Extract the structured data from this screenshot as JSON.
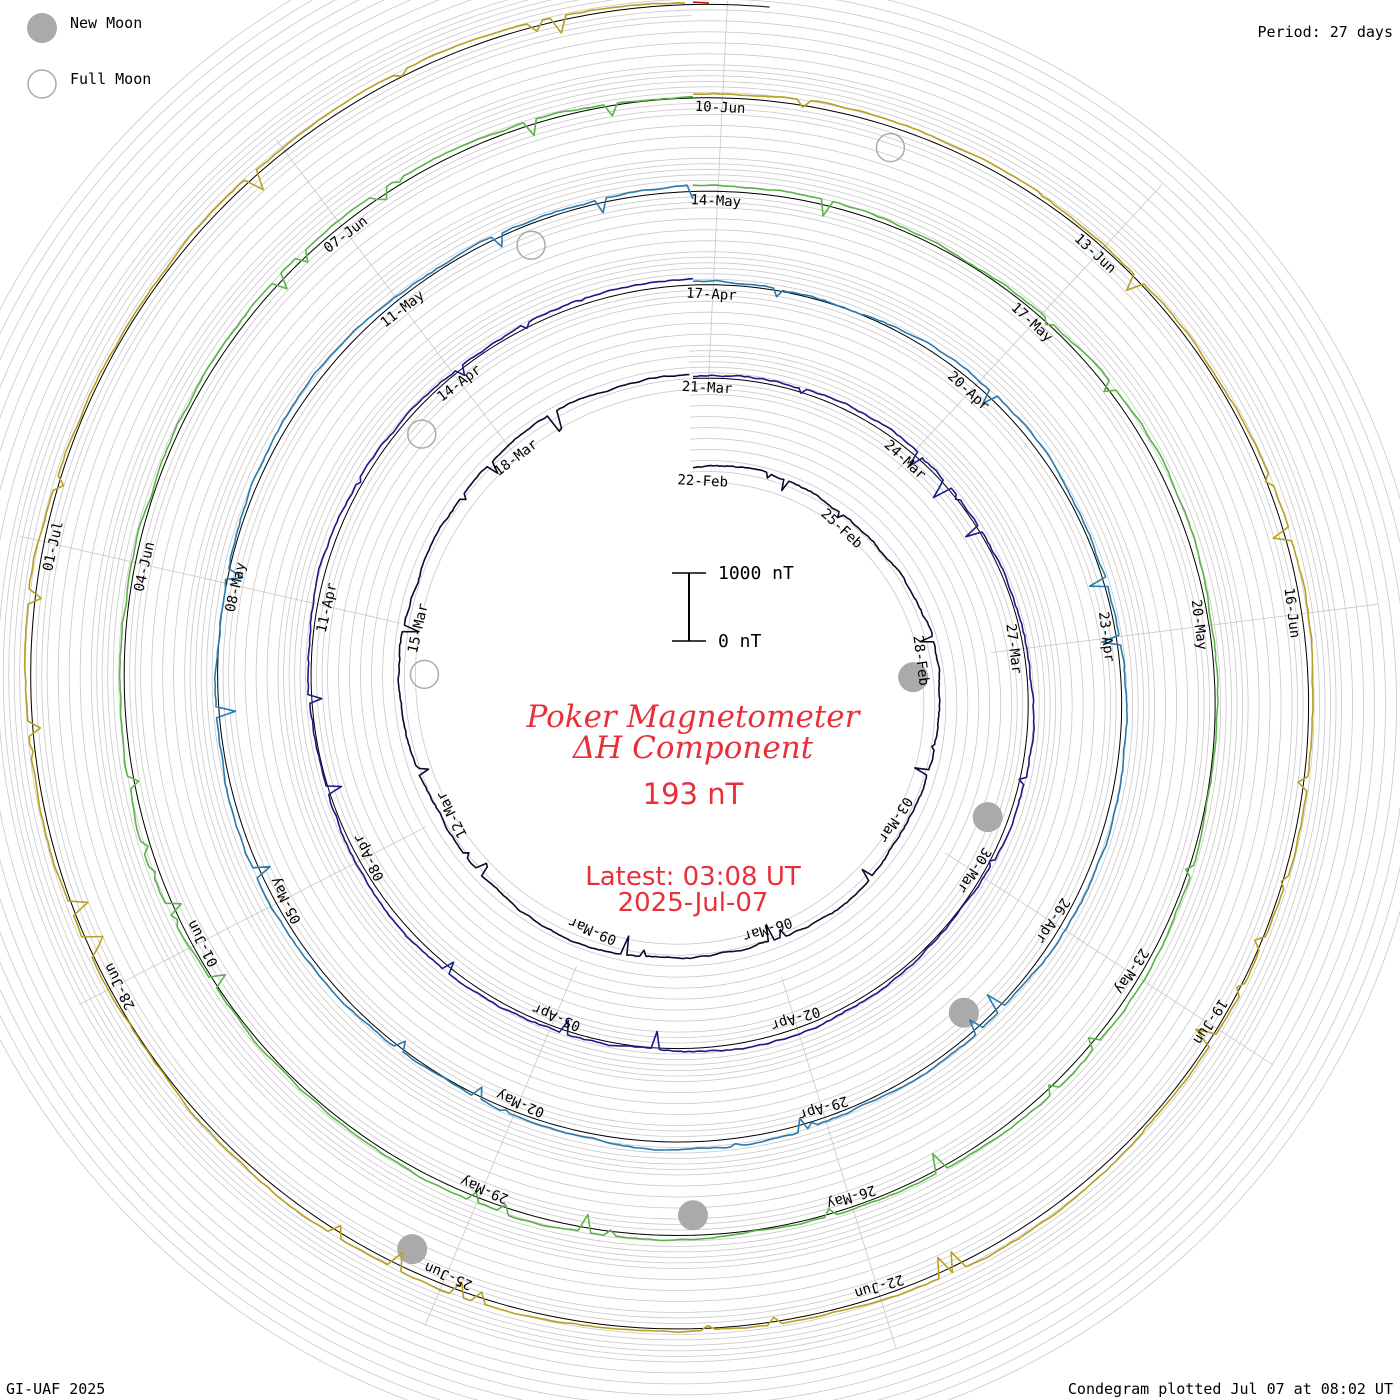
{
  "legend": {
    "new_moon_label": "New Moon",
    "full_moon_label": "Full Moon"
  },
  "header": {
    "period": "Period: 27 days"
  },
  "footer": {
    "left": "GI-UAF 2025",
    "right": "Condegram plotted Jul 07 at 08:02 UT"
  },
  "scale_bar": {
    "top_label": "1000 nT",
    "bottom_label": "0 nT"
  },
  "center": {
    "title_line1": "Poker Magnetometer",
    "title_line2": "ΔH Component",
    "current_value": "193 nT",
    "latest_line1": "Latest: 03:08 UT",
    "latest_line2": "2025-Jul-07"
  },
  "colors": {
    "moon_fill": "#aaaaaa",
    "title": "#e8303a",
    "grid": "#c8c8c8",
    "ring": "#000000"
  },
  "chart_data": {
    "type": "line",
    "layout": "spiral-condegram",
    "period_days": 27,
    "start_date": "2025-02-22",
    "end_date": "2025-07-07",
    "units": "nT",
    "scale_bar_nT": [
      0,
      1000
    ],
    "date_labels": [
      "22-Feb",
      "25-Feb",
      "28-Feb",
      "03-Mar",
      "06-Mar",
      "09-Mar",
      "12-Mar",
      "15-Mar",
      "18-Mar",
      "21-Mar",
      "24-Mar",
      "27-Mar",
      "30-Mar",
      "02-Apr",
      "05-Apr",
      "08-Apr",
      "11-Apr",
      "14-Apr",
      "17-Apr",
      "20-Apr",
      "23-Apr",
      "26-Apr",
      "29-Apr",
      "02-May",
      "05-May",
      "08-May",
      "11-May",
      "14-May",
      "17-May",
      "20-May",
      "23-May",
      "26-May",
      "29-May",
      "01-Jun",
      "04-Jun",
      "07-Jun",
      "10-Jun",
      "13-Jun",
      "16-Jun",
      "19-Jun",
      "22-Jun",
      "25-Jun",
      "28-Jun",
      "01-Jul"
    ],
    "new_moons": [
      "2025-02-28",
      "2025-03-29",
      "2025-04-27",
      "2025-05-27",
      "2025-06-25"
    ],
    "full_moons": [
      "2025-03-14",
      "2025-04-13",
      "2025-05-12",
      "2025-06-11"
    ],
    "rotations": [
      {
        "start": "2025-02-22",
        "color": "#0a0a2e"
      },
      {
        "start": "2025-03-21",
        "color": "#1a1a8e"
      },
      {
        "start": "2025-04-17",
        "color": "#2a7ab0"
      },
      {
        "start": "2025-05-14",
        "color": "#5bb34a"
      },
      {
        "start": "2025-06-10",
        "color": "#b8a020"
      },
      {
        "start": "2025-07-07",
        "color": "#c01010"
      }
    ]
  }
}
